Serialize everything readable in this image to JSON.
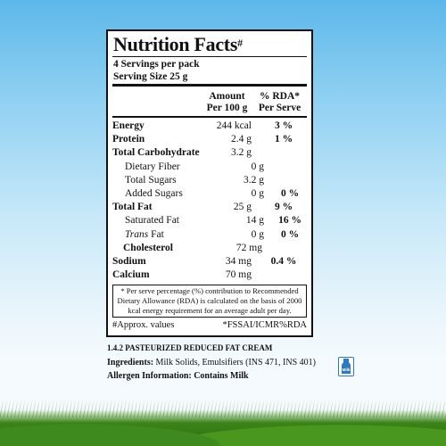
{
  "panel": {
    "title": "Nutrition Facts",
    "title_mark": "#",
    "servings": "4 Servings per pack",
    "serving_size": "Serving Size 25 g",
    "col_amount_1": "Amount",
    "col_amount_2": "Per 100 g",
    "col_rda_1": "% RDA*",
    "col_rda_2": "Per Serve",
    "rows": [
      {
        "name": "Energy",
        "value": "244 kcal",
        "rda": "3 %"
      },
      {
        "name": "Protein",
        "value": "2.4 g",
        "rda": "1 %"
      },
      {
        "name": "Total Carbohydrate",
        "value": "3.2 g",
        "rda": ""
      },
      {
        "name": "Dietary Fiber",
        "value": "0 g",
        "rda": ""
      },
      {
        "name": "Total Sugars",
        "value": "3.2 g",
        "rda": ""
      },
      {
        "name": "Added Sugars",
        "value": "0 g",
        "rda": "0 %"
      },
      {
        "name": "Total Fat",
        "value": "25 g",
        "rda": "9 %"
      },
      {
        "name": "Saturated Fat",
        "value": "14 g",
        "rda": "16 %"
      },
      {
        "name_italic": "Trans",
        "name_rest": " Fat",
        "value": "0 g",
        "rda": "0 %"
      },
      {
        "name": "Cholesterol",
        "value": "72 mg",
        "rda": ""
      },
      {
        "name": "Sodium",
        "value": "34 mg",
        "rda": "0.4 %"
      },
      {
        "name": "Calcium",
        "value": "70 mg",
        "rda": ""
      }
    ],
    "footnote": "* Per serve percentage (%) contribution to Recommended Dietary Allowance (RDA) is calculated on the basis of 2000 kcal energy requirement for an average adult per day.",
    "approx_left": "#Approx. values",
    "approx_right": "*FSSAI/ICMR%RDA"
  },
  "product_line": "1.4.2 PASTEURIZED REDUCED FAT CREAM",
  "ingredients_label": "Ingredients:",
  "ingredients_text": "Milk Solids, Emulsifiers (INS 471, INS 401)",
  "allergen": "Allergen Information: Contains Milk",
  "milk_icon_label": "Milk",
  "colors": {
    "sky": "#5cb8ea",
    "grass": "#3f8a1e",
    "milk_icon": "#2a7bc3"
  }
}
